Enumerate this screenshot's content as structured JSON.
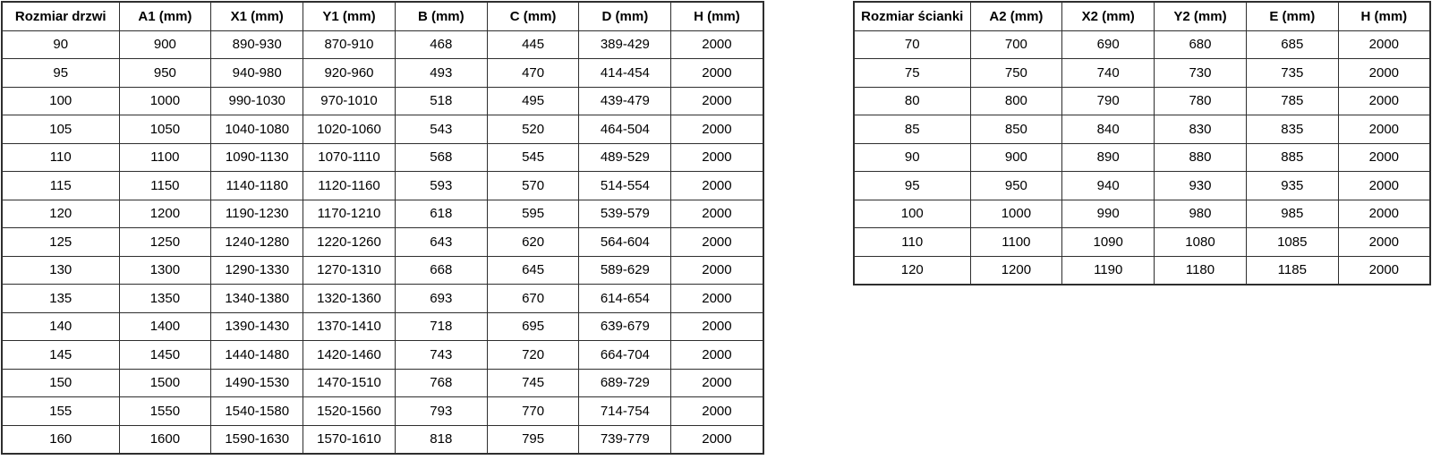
{
  "colors": {
    "border": "#2e2e2e",
    "text": "#000000",
    "background": "#ffffff"
  },
  "tables": [
    {
      "name": "door-size-table",
      "headers": [
        "Rozmiar drzwi",
        "A1 (mm)",
        "X1 (mm)",
        "Y1 (mm)",
        "B (mm)",
        "C (mm)",
        "D (mm)",
        "H (mm)"
      ],
      "rows": [
        [
          "90",
          "900",
          "890-930",
          "870-910",
          "468",
          "445",
          "389-429",
          "2000"
        ],
        [
          "95",
          "950",
          "940-980",
          "920-960",
          "493",
          "470",
          "414-454",
          "2000"
        ],
        [
          "100",
          "1000",
          "990-1030",
          "970-1010",
          "518",
          "495",
          "439-479",
          "2000"
        ],
        [
          "105",
          "1050",
          "1040-1080",
          "1020-1060",
          "543",
          "520",
          "464-504",
          "2000"
        ],
        [
          "110",
          "1100",
          "1090-1130",
          "1070-1110",
          "568",
          "545",
          "489-529",
          "2000"
        ],
        [
          "115",
          "1150",
          "1140-1180",
          "1120-1160",
          "593",
          "570",
          "514-554",
          "2000"
        ],
        [
          "120",
          "1200",
          "1190-1230",
          "1170-1210",
          "618",
          "595",
          "539-579",
          "2000"
        ],
        [
          "125",
          "1250",
          "1240-1280",
          "1220-1260",
          "643",
          "620",
          "564-604",
          "2000"
        ],
        [
          "130",
          "1300",
          "1290-1330",
          "1270-1310",
          "668",
          "645",
          "589-629",
          "2000"
        ],
        [
          "135",
          "1350",
          "1340-1380",
          "1320-1360",
          "693",
          "670",
          "614-654",
          "2000"
        ],
        [
          "140",
          "1400",
          "1390-1430",
          "1370-1410",
          "718",
          "695",
          "639-679",
          "2000"
        ],
        [
          "145",
          "1450",
          "1440-1480",
          "1420-1460",
          "743",
          "720",
          "664-704",
          "2000"
        ],
        [
          "150",
          "1500",
          "1490-1530",
          "1470-1510",
          "768",
          "745",
          "689-729",
          "2000"
        ],
        [
          "155",
          "1550",
          "1540-1580",
          "1520-1560",
          "793",
          "770",
          "714-754",
          "2000"
        ],
        [
          "160",
          "1600",
          "1590-1630",
          "1570-1610",
          "818",
          "795",
          "739-779",
          "2000"
        ]
      ]
    },
    {
      "name": "wall-panel-size-table",
      "headers": [
        "Rozmiar ścianki",
        "A2 (mm)",
        "X2 (mm)",
        "Y2 (mm)",
        "E (mm)",
        "H (mm)"
      ],
      "rows": [
        [
          "70",
          "700",
          "690",
          "680",
          "685",
          "2000"
        ],
        [
          "75",
          "750",
          "740",
          "730",
          "735",
          "2000"
        ],
        [
          "80",
          "800",
          "790",
          "780",
          "785",
          "2000"
        ],
        [
          "85",
          "850",
          "840",
          "830",
          "835",
          "2000"
        ],
        [
          "90",
          "900",
          "890",
          "880",
          "885",
          "2000"
        ],
        [
          "95",
          "950",
          "940",
          "930",
          "935",
          "2000"
        ],
        [
          "100",
          "1000",
          "990",
          "980",
          "985",
          "2000"
        ],
        [
          "110",
          "1100",
          "1090",
          "1080",
          "1085",
          "2000"
        ],
        [
          "120",
          "1200",
          "1190",
          "1180",
          "1185",
          "2000"
        ]
      ]
    }
  ]
}
